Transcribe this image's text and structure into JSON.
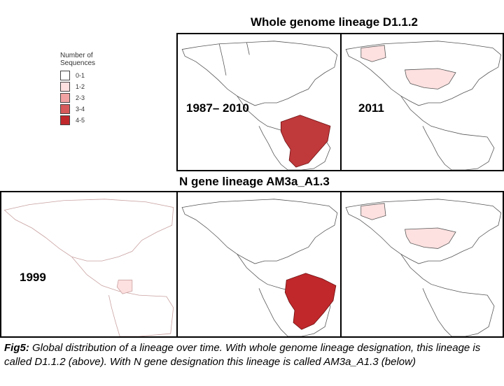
{
  "titles": {
    "whole_genome": "Whole genome lineage D1.1.2",
    "n_gene": "N gene lineage AM3a_A1.3"
  },
  "legend": {
    "title_line1": "Number of",
    "title_line2": "Sequences",
    "items": [
      {
        "label": "0-1",
        "color": "#ffffff"
      },
      {
        "label": "1-2",
        "color": "#fde0e0"
      },
      {
        "label": "2-3",
        "color": "#f1a3a3"
      },
      {
        "label": "3-4",
        "color": "#d65a5a"
      },
      {
        "label": "4-5",
        "color": "#c0282b"
      }
    ]
  },
  "panels": {
    "top_left": {
      "year": "1987– 2010",
      "highlight": "Brazil",
      "level": "4-5"
    },
    "top_right": {
      "year": "2011",
      "highlight": "USA",
      "level": "1-2"
    },
    "bottom_left": {
      "year": "1999",
      "highlight": "Peru",
      "level": "1-2"
    },
    "bottom_middle": {
      "year": "",
      "highlight": "Brazil",
      "level": "4-5"
    },
    "bottom_right": {
      "year": "",
      "highlight": "USA",
      "level": "1-2"
    }
  },
  "caption": {
    "label": "Fig5:",
    "text": " Global distribution of a lineage over time. With whole genome lineage designation, this lineage is called D1.1.2 (above). With N gene designation this lineage is called AM3a_A1.3 (below)"
  }
}
